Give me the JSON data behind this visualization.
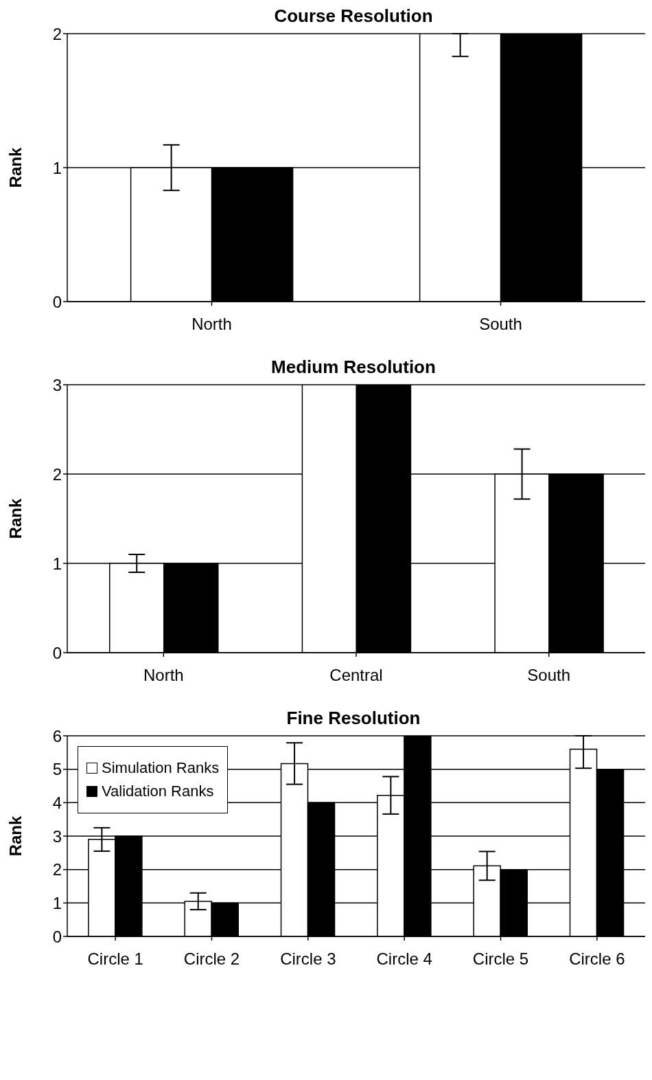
{
  "chart_data": [
    {
      "type": "bar",
      "title": "Course Resolution",
      "ylabel": "Rank",
      "categories": [
        "North",
        "South"
      ],
      "ylim": [
        0,
        2
      ],
      "yticks": [
        0,
        1,
        2
      ],
      "grid": "y",
      "legend": false,
      "series": [
        {
          "color": "#ffffff",
          "values": [
            1,
            2
          ],
          "errors": [
            0.17,
            [
              1.83,
              2
            ]
          ]
        },
        {
          "color": "#000000",
          "values": [
            1,
            2
          ]
        }
      ]
    },
    {
      "type": "bar",
      "title": "Medium Resolution",
      "ylabel": "Rank",
      "categories": [
        "North",
        "Central",
        "South"
      ],
      "ylim": [
        0,
        3
      ],
      "yticks": [
        0,
        1,
        2,
        3
      ],
      "grid": "y",
      "legend": false,
      "series": [
        {
          "color": "#ffffff",
          "values": [
            1,
            3,
            2
          ],
          "errors": [
            0.1,
            null,
            0.28
          ]
        },
        {
          "color": "#000000",
          "values": [
            1,
            3,
            2
          ]
        }
      ]
    },
    {
      "type": "bar",
      "title": "Fine Resolution",
      "ylabel": "Rank",
      "categories": [
        "Circle 1",
        "Circle 2",
        "Circle 3",
        "Circle 4",
        "Circle 5",
        "Circle 6"
      ],
      "ylim": [
        0,
        6
      ],
      "yticks": [
        0,
        1,
        2,
        3,
        4,
        5,
        6
      ],
      "grid": "y",
      "legend": "top left",
      "series": [
        {
          "name": "Simulation Ranks",
          "color": "#ffffff",
          "values": [
            2.9,
            1.05,
            5.17,
            4.22,
            2.11,
            5.6
          ],
          "errors": [
            0.35,
            0.25,
            0.62,
            0.56,
            0.43,
            [
              5.03,
              6
            ]
          ]
        },
        {
          "name": "Validation Ranks",
          "color": "#000000",
          "values": [
            3,
            1,
            4,
            6,
            2,
            5
          ]
        }
      ]
    }
  ]
}
